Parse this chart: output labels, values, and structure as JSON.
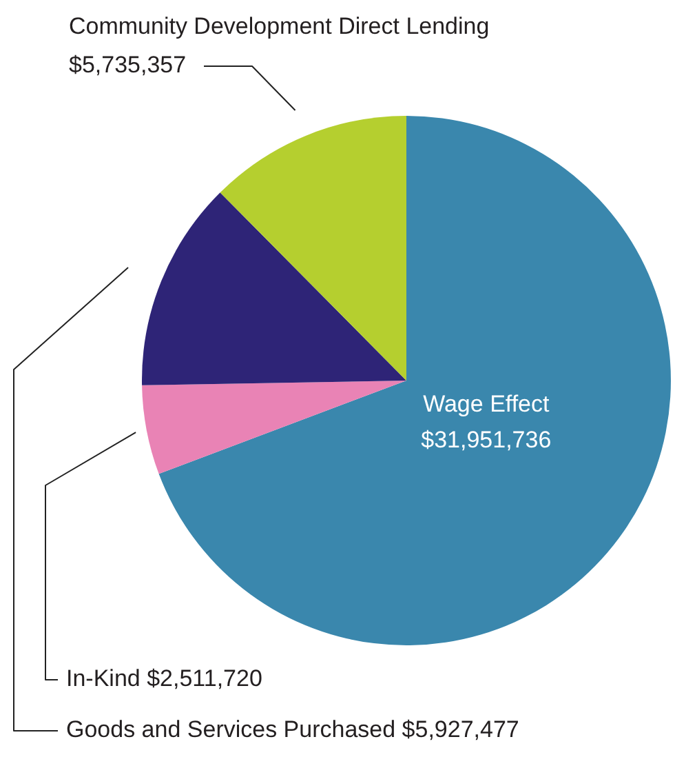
{
  "chart_data": {
    "type": "pie",
    "categories": [
      "Wage Effect",
      "In-Kind",
      "Goods and Services Purchased",
      "Community Development Direct Lending"
    ],
    "values": [
      31951736,
      2511720,
      5927477,
      5735357
    ],
    "colors": [
      "#3a87ad",
      "#e983b5",
      "#2e2477",
      "#b5cf2f"
    ],
    "value_labels": [
      "$31,951,736",
      "$2,511,720",
      "$5,927,477",
      "$5,735,357"
    ],
    "legend": false
  }
}
